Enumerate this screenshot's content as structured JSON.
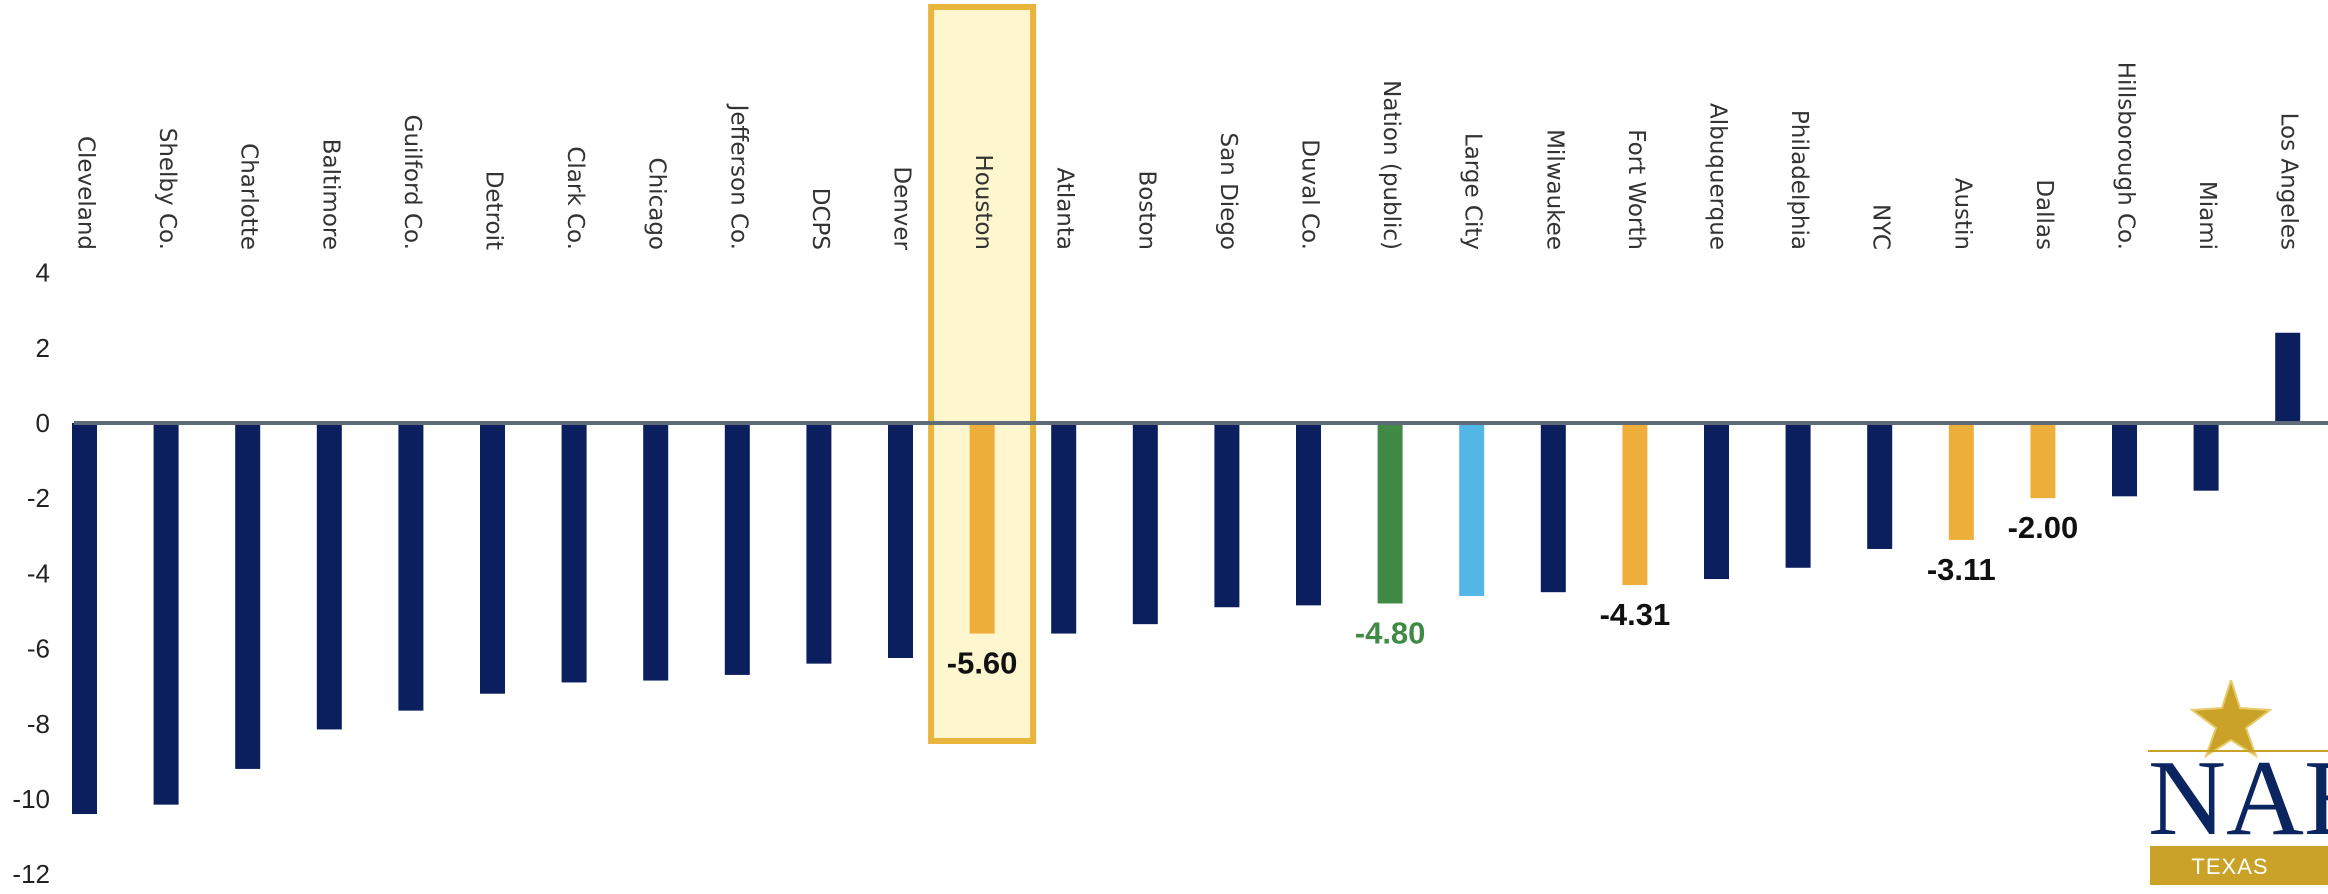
{
  "chart_data": {
    "type": "bar",
    "categories": [
      "Cleveland",
      "Shelby Co.",
      "Charlotte",
      "Baltimore",
      "Guilford Co.",
      "Detroit",
      "Clark Co.",
      "Chicago",
      "Jefferson Co.",
      "DCPS",
      "Denver",
      "Houston",
      "Atlanta",
      "Boston",
      "San Diego",
      "Duval Co.",
      "Nation (public)",
      "Large City",
      "Milwaukee",
      "Fort Worth",
      "Albuquerque",
      "Philadelphia",
      "NYC",
      "Austin",
      "Dallas",
      "Hillsborough Co.",
      "Miami",
      "Los Angeles"
    ],
    "values": [
      -10.4,
      -10.15,
      -9.2,
      -8.15,
      -7.65,
      -7.2,
      -6.9,
      -6.85,
      -6.7,
      -6.4,
      -6.25,
      -5.6,
      -5.6,
      -5.35,
      -4.9,
      -4.85,
      -4.8,
      -4.6,
      -4.5,
      -4.31,
      -4.15,
      -3.85,
      -3.35,
      -3.11,
      -2.0,
      -1.95,
      -1.8,
      2.4
    ],
    "colors": [
      "#0b1f5e",
      "#0b1f5e",
      "#0b1f5e",
      "#0b1f5e",
      "#0b1f5e",
      "#0b1f5e",
      "#0b1f5e",
      "#0b1f5e",
      "#0b1f5e",
      "#0b1f5e",
      "#0b1f5e",
      "#eeae3a",
      "#0b1f5e",
      "#0b1f5e",
      "#0b1f5e",
      "#0b1f5e",
      "#3f8a44",
      "#52b6e6",
      "#0b1f5e",
      "#eeae3a",
      "#0b1f5e",
      "#0b1f5e",
      "#0b1f5e",
      "#eeae3a",
      "#eeae3a",
      "#0b1f5e",
      "#0b1f5e",
      "#0b1f5e"
    ],
    "data_labels": [
      {
        "category": "Houston",
        "text": "-5.60",
        "color": "#111111"
      },
      {
        "category": "Nation (public)",
        "text": "-4.80",
        "color": "#3f8a44"
      },
      {
        "category": "Fort Worth",
        "text": "-4.31",
        "color": "#111111"
      },
      {
        "category": "Austin",
        "text": "-3.11",
        "color": "#111111"
      },
      {
        "category": "Dallas",
        "text": "-2.00",
        "color": "#111111"
      }
    ],
    "highlight": {
      "category": "Houston",
      "fill": "#fef6cf",
      "stroke": "#e9b43c"
    },
    "y_ticks": [
      "4",
      "2",
      "0",
      "-2",
      "-4",
      "-6",
      "-8",
      "-10",
      "-12"
    ],
    "ylim": [
      -12,
      4
    ],
    "zero_line_color": "#5f6b78",
    "title": "",
    "xlabel": "",
    "ylabel": "",
    "grid": false,
    "legend": "none"
  },
  "logo": {
    "text": "NAE",
    "subtext": "TEXAS",
    "primary_color": "#0b2560",
    "accent_color": "#c9a227",
    "icon": "star-icon"
  }
}
